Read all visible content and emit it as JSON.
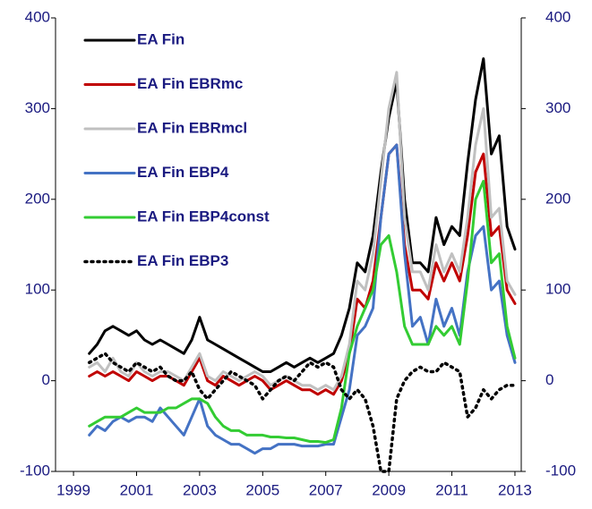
{
  "chart_data": {
    "type": "line",
    "x": [
      1999.5,
      1999.75,
      2000,
      2000.25,
      2000.5,
      2000.75,
      2001,
      2001.25,
      2001.5,
      2001.75,
      2002,
      2002.25,
      2002.5,
      2002.75,
      2003,
      2003.25,
      2003.5,
      2003.75,
      2004,
      2004.25,
      2004.5,
      2004.75,
      2005,
      2005.25,
      2005.5,
      2005.75,
      2006,
      2006.25,
      2006.5,
      2006.75,
      2007,
      2007.25,
      2007.5,
      2007.75,
      2008,
      2008.25,
      2008.5,
      2008.75,
      2009,
      2009.25,
      2009.5,
      2009.75,
      2010,
      2010.25,
      2010.5,
      2010.75,
      2011,
      2011.25,
      2011.5,
      2011.75,
      2012,
      2012.25,
      2012.5,
      2012.75,
      2013
    ],
    "series": [
      {
        "name": "EA Fin",
        "color": "#000000",
        "line_style": "solid",
        "values": [
          30,
          40,
          55,
          60,
          55,
          50,
          55,
          45,
          40,
          45,
          40,
          35,
          30,
          45,
          70,
          45,
          40,
          35,
          30,
          25,
          20,
          15,
          10,
          10,
          15,
          20,
          15,
          20,
          25,
          20,
          25,
          30,
          50,
          80,
          130,
          120,
          160,
          230,
          290,
          330,
          200,
          130,
          130,
          120,
          180,
          150,
          170,
          160,
          240,
          310,
          355,
          250,
          270,
          170,
          145
        ]
      },
      {
        "name": "EA Fin EBRmc",
        "color": "#c00000",
        "line_style": "solid",
        "values": [
          5,
          10,
          5,
          10,
          5,
          0,
          10,
          5,
          0,
          5,
          5,
          0,
          -5,
          10,
          25,
          0,
          -5,
          5,
          0,
          -5,
          0,
          5,
          0,
          -10,
          -5,
          0,
          -5,
          -10,
          -10,
          -15,
          -10,
          -15,
          0,
          30,
          90,
          80,
          110,
          180,
          250,
          260,
          150,
          100,
          100,
          90,
          130,
          110,
          130,
          110,
          160,
          230,
          250,
          160,
          170,
          100,
          85
        ]
      },
      {
        "name": "EA Fin EBRmcl",
        "color": "#c0c0c0",
        "line_style": "solid",
        "values": [
          15,
          20,
          10,
          25,
          10,
          5,
          20,
          10,
          5,
          10,
          10,
          5,
          0,
          15,
          30,
          5,
          0,
          10,
          5,
          0,
          5,
          10,
          5,
          -5,
          0,
          5,
          0,
          -5,
          -5,
          -10,
          -5,
          -10,
          5,
          40,
          110,
          100,
          140,
          220,
          300,
          340,
          180,
          120,
          120,
          100,
          150,
          120,
          140,
          120,
          180,
          260,
          300,
          180,
          190,
          110,
          95
        ]
      },
      {
        "name": "EA Fin EBP4",
        "color": "#4472c4",
        "line_style": "solid",
        "values": [
          -60,
          -50,
          -55,
          -45,
          -40,
          -45,
          -40,
          -40,
          -45,
          -30,
          -40,
          -50,
          -60,
          -40,
          -20,
          -50,
          -60,
          -65,
          -70,
          -70,
          -75,
          -80,
          -75,
          -75,
          -70,
          -70,
          -70,
          -72,
          -72,
          -72,
          -70,
          -70,
          -40,
          -10,
          50,
          60,
          80,
          180,
          250,
          260,
          140,
          60,
          70,
          40,
          90,
          60,
          80,
          50,
          120,
          160,
          170,
          100,
          110,
          50,
          20
        ]
      },
      {
        "name": "EA Fin EBP4const",
        "color": "#33cc33",
        "line_style": "solid",
        "values": [
          -50,
          -45,
          -40,
          -40,
          -40,
          -35,
          -30,
          -35,
          -35,
          -35,
          -30,
          -30,
          -25,
          -20,
          -20,
          -25,
          -40,
          -50,
          -55,
          -55,
          -60,
          -60,
          -60,
          -62,
          -62,
          -63,
          -63,
          -65,
          -67,
          -67,
          -68,
          -65,
          -30,
          30,
          60,
          80,
          100,
          150,
          160,
          120,
          60,
          40,
          40,
          40,
          60,
          50,
          60,
          40,
          110,
          200,
          220,
          130,
          140,
          60,
          25
        ]
      },
      {
        "name": "EA Fin EBP3",
        "color": "#000000",
        "line_style": "dotted",
        "values": [
          20,
          25,
          30,
          20,
          15,
          10,
          20,
          15,
          10,
          15,
          5,
          0,
          0,
          10,
          -10,
          -20,
          -10,
          0,
          10,
          5,
          0,
          -5,
          -20,
          -10,
          0,
          5,
          0,
          10,
          20,
          15,
          20,
          15,
          -10,
          -20,
          -10,
          -20,
          -50,
          -100,
          -100,
          -20,
          0,
          10,
          15,
          10,
          10,
          20,
          15,
          10,
          -40,
          -30,
          -10,
          -20,
          -10,
          -5,
          -5
        ]
      }
    ],
    "xlim": [
      1998.43,
      2013.2
    ],
    "xticks": [
      1999,
      2001,
      2003,
      2005,
      2007,
      2009,
      2011,
      2013
    ],
    "ylim": [
      -100,
      400
    ],
    "yticks": [
      -100,
      0,
      100,
      200,
      300,
      400
    ],
    "y2lim": [
      -100,
      400
    ],
    "y2ticks": [
      -100,
      0,
      100,
      200,
      300,
      400
    ],
    "legend": "upper-left"
  }
}
